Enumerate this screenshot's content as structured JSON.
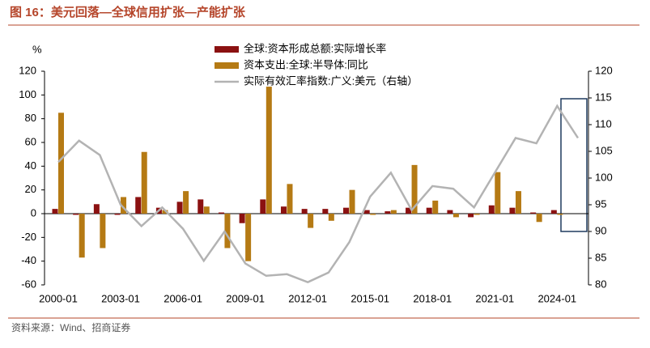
{
  "chart_data": {
    "type": "bar-line",
    "title": "图 16：美元回落—全球信用扩张—产能扩张",
    "source": "资料来源：Wind、招商证券",
    "ylabel": "%",
    "categories": [
      "2000-01",
      null,
      null,
      "2003-01",
      null,
      null,
      "2006-01",
      null,
      null,
      "2009-01",
      null,
      null,
      "2012-01",
      null,
      null,
      "2015-01",
      null,
      null,
      "2018-01",
      null,
      null,
      "2021-01",
      null,
      null,
      "2024-01",
      null
    ],
    "series": [
      {
        "name": "全球:资本形成总额:实际增长率",
        "type": "bar",
        "color": "#8b1111",
        "values": [
          4,
          -1,
          8,
          -1,
          14,
          5,
          10,
          12,
          1,
          -8,
          12,
          6,
          4,
          4,
          5,
          3,
          2,
          5,
          5,
          3,
          -3,
          7,
          5,
          1,
          3,
          null
        ]
      },
      {
        "name": "资本支出:全球:半导体:同比",
        "type": "bar",
        "color": "#b57a14",
        "values": [
          85,
          -37,
          -29,
          14,
          52,
          3,
          19,
          6,
          -29,
          -40,
          107,
          25,
          -12,
          -6,
          20,
          -1,
          3,
          41,
          11,
          -3,
          -1,
          35,
          19,
          -7,
          -1,
          null
        ]
      },
      {
        "name": "实际有效汇率指数:广义:美元（右轴）",
        "type": "line",
        "axis": "y2",
        "color": "#b3b3b3",
        "values": [
          103,
          107,
          104.3,
          95,
          91,
          94.5,
          90.5,
          84.5,
          90,
          84,
          81.7,
          82,
          80.5,
          82.3,
          88,
          96.5,
          101,
          94,
          98.5,
          98,
          94.5,
          101,
          107.5,
          106.5,
          113.5,
          107.5
        ]
      }
    ],
    "ylim": [
      -60,
      120
    ],
    "yticks": [
      -60,
      -40,
      -20,
      0,
      20,
      40,
      60,
      80,
      100,
      120
    ],
    "y2lim": [
      80,
      120
    ],
    "y2ticks": [
      80,
      85,
      90,
      95,
      100,
      105,
      110,
      115,
      120
    ],
    "grid": false
  }
}
